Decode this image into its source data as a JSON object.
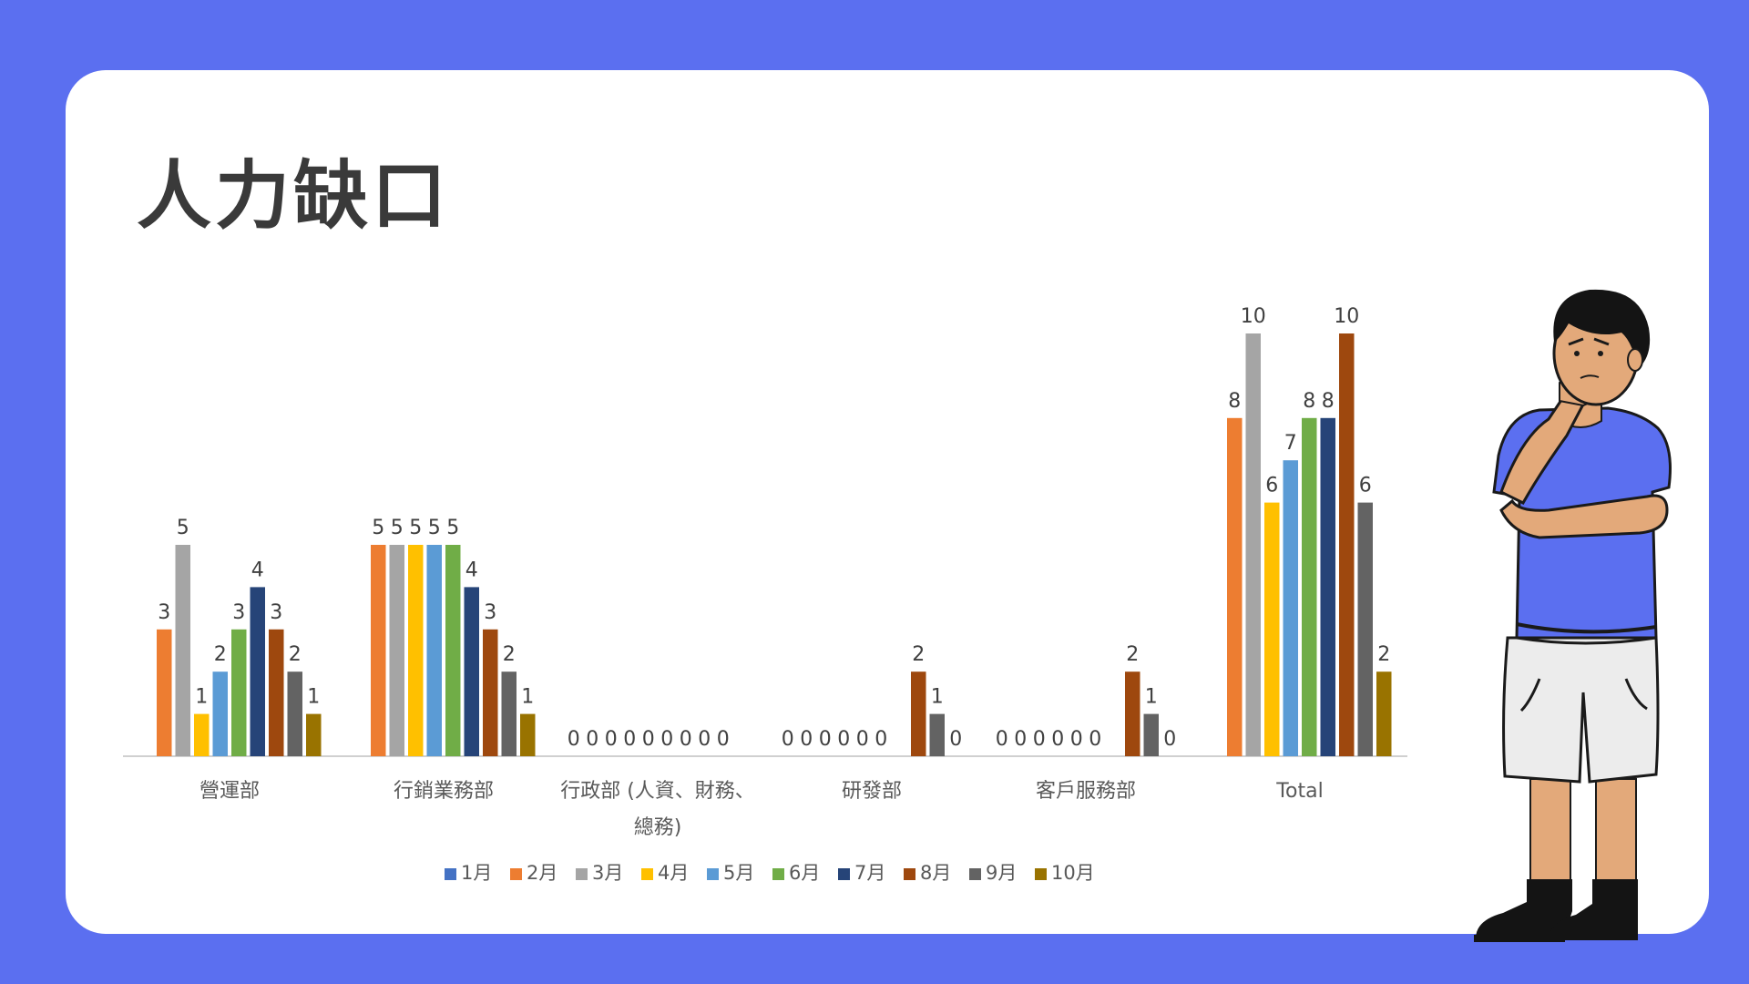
{
  "slide": {
    "title": "人力缺口"
  },
  "chart_data": {
    "type": "bar",
    "title": "",
    "xlabel": "",
    "ylabel": "",
    "ylim": [
      0,
      10
    ],
    "grid": false,
    "legend_position": "bottom",
    "categories": [
      [
        "營運部"
      ],
      [
        "行銷業務部"
      ],
      [
        "行政部 (人資、財務、",
        "總務)"
      ],
      [
        "研發部"
      ],
      [
        "客戶服務部"
      ],
      [
        "Total"
      ]
    ],
    "series": [
      {
        "name": "1月",
        "color": "#4472c4",
        "values": [
          0,
          0,
          0,
          0,
          0,
          0
        ]
      },
      {
        "name": "2月",
        "color": "#ed7d31",
        "values": [
          3,
          5,
          0,
          0,
          0,
          8
        ]
      },
      {
        "name": "3月",
        "color": "#a5a5a5",
        "values": [
          5,
          5,
          0,
          0,
          0,
          10
        ]
      },
      {
        "name": "4月",
        "color": "#ffc000",
        "values": [
          1,
          5,
          0,
          0,
          0,
          6
        ]
      },
      {
        "name": "5月",
        "color": "#5b9bd5",
        "values": [
          2,
          5,
          0,
          0,
          0,
          7
        ]
      },
      {
        "name": "6月",
        "color": "#70ad47",
        "values": [
          3,
          5,
          0,
          0,
          0,
          8
        ]
      },
      {
        "name": "7月",
        "color": "#264478",
        "values": [
          4,
          4,
          0,
          0,
          0,
          8
        ]
      },
      {
        "name": "8月",
        "color": "#9e480e",
        "values": [
          3,
          3,
          0,
          2,
          2,
          10
        ]
      },
      {
        "name": "9月",
        "color": "#636363",
        "values": [
          2,
          2,
          0,
          1,
          1,
          6
        ]
      },
      {
        "name": "10月",
        "color": "#997300",
        "values": [
          1,
          1,
          0,
          0,
          0,
          2
        ]
      }
    ],
    "data_labels_shown": [
      [
        false,
        true,
        true,
        true,
        true,
        true,
        true,
        true,
        true,
        true
      ],
      [
        false,
        true,
        true,
        true,
        true,
        true,
        true,
        true,
        true,
        true
      ],
      [
        true,
        true,
        true,
        true,
        true,
        true,
        true,
        true,
        true,
        false
      ],
      [
        true,
        true,
        true,
        true,
        true,
        true,
        false,
        true,
        true,
        true
      ],
      [
        true,
        true,
        true,
        true,
        true,
        true,
        false,
        true,
        true,
        true
      ],
      [
        false,
        true,
        true,
        true,
        true,
        true,
        true,
        true,
        true,
        true
      ]
    ]
  },
  "colors": {
    "frame": "#5b6ff0",
    "card": "#ffffff",
    "axis_text": "#595959",
    "shirt": "#5b6ff0",
    "skin": "#e3a97a"
  },
  "illustration": {
    "subject": "thinking-man-icon"
  }
}
